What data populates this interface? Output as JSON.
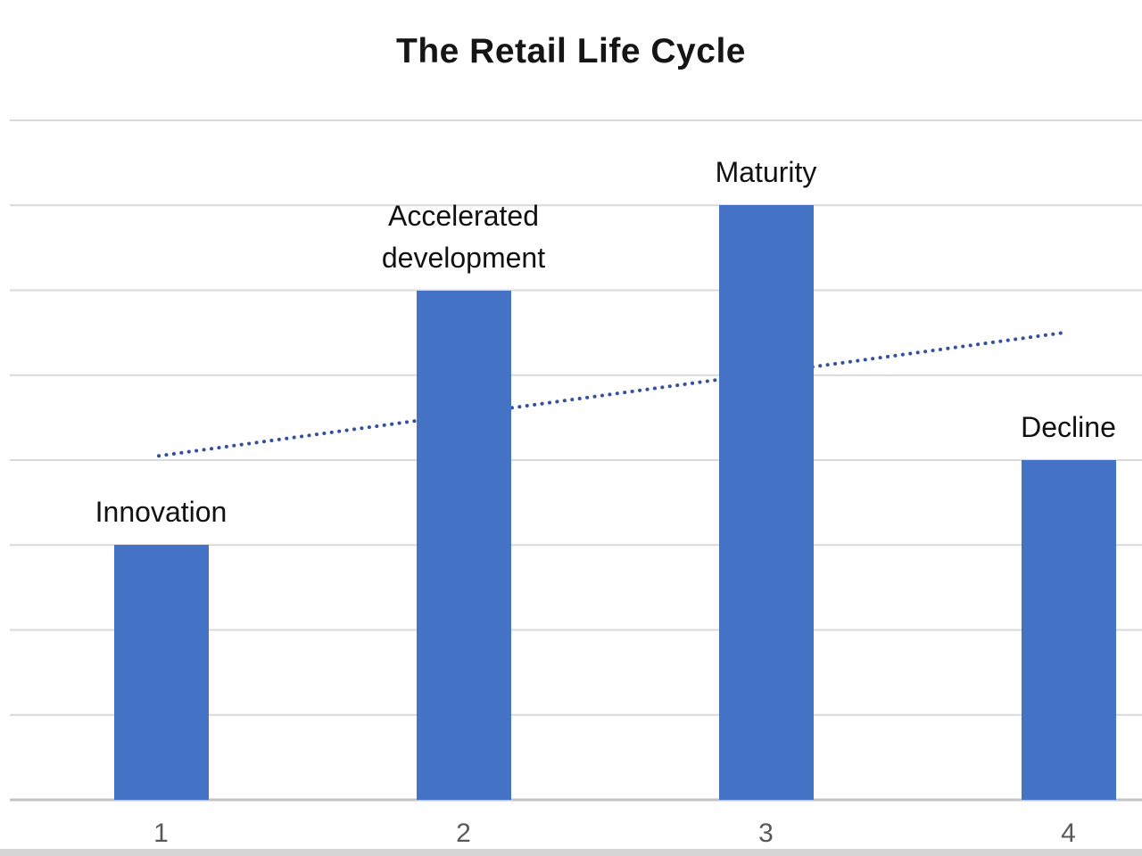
{
  "chart_data": {
    "type": "bar",
    "title": "The Retail Life Cycle",
    "categories": [
      "1",
      "2",
      "3",
      "4"
    ],
    "values": [
      3,
      6,
      7,
      4
    ],
    "bar_labels": [
      "Innovation",
      "Accelerated development",
      "Maturity",
      "Decline"
    ],
    "trendline": {
      "style": "dotted",
      "start": {
        "x": 1,
        "y": 4.05
      },
      "end": {
        "x": 4,
        "y": 5.5
      }
    },
    "ylim": [
      0,
      8
    ],
    "gridline_step": 1,
    "y_axis_labels_visible": false,
    "legend": "none",
    "colors": {
      "bar": "#4472C4",
      "trendline": "#35519E",
      "gridline": "#D9D9D9",
      "axis_line": "#C3C3C3",
      "tick_label": "#595959",
      "title": "#151515",
      "bottom_strip": "#D6D6D6"
    }
  }
}
